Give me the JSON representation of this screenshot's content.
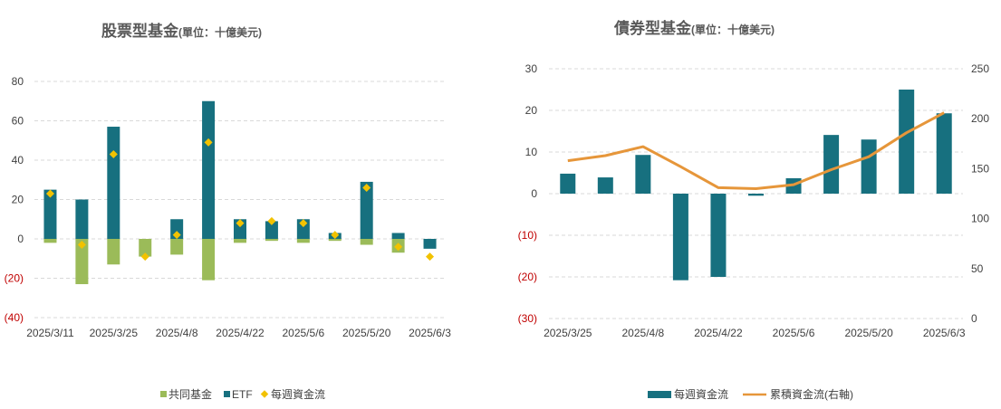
{
  "colors": {
    "mutual": "#9bbb59",
    "etf": "#17707f",
    "net": "#f2c200",
    "weekly": "#17707f",
    "cumulative": "#e6963a",
    "negative_tick": "#c00000",
    "grid": "#d9d9d9"
  },
  "chart_data": [
    {
      "type": "bar",
      "title": "股票型基金",
      "subtitle": "(單位：十億美元)",
      "ylim": [
        -40,
        80
      ],
      "yticks": [
        "80",
        "60",
        "40",
        "20",
        "0",
        "(20)",
        "(40)"
      ],
      "ytick_values": [
        80,
        60,
        40,
        20,
        0,
        -20,
        -40
      ],
      "x": [
        "2025/3/11",
        "2025/3/18",
        "2025/3/25",
        "2025/4/1",
        "2025/4/8",
        "2025/4/15",
        "2025/4/22",
        "2025/4/29",
        "2025/5/6",
        "2025/5/13",
        "2025/5/20",
        "2025/5/27",
        "2025/6/3"
      ],
      "xticks": [
        "2025/3/11",
        "2025/3/25",
        "2025/4/8",
        "2025/4/22",
        "2025/5/6",
        "2025/5/20",
        "2025/6/3"
      ],
      "xtick_index": [
        0,
        2,
        4,
        6,
        8,
        10,
        12
      ],
      "grid": true,
      "legend_position": "bottom",
      "series": [
        {
          "name": "共同基金",
          "kind": "bar",
          "values": [
            -2,
            -23,
            -13,
            -9,
            -8,
            -21,
            -2,
            -1,
            -2,
            -1,
            -3,
            -7,
            -4
          ]
        },
        {
          "name": "ETF",
          "kind": "bar",
          "values": [
            25,
            20,
            57,
            0,
            10,
            70,
            10,
            9,
            10,
            3,
            29,
            3,
            -5
          ]
        },
        {
          "name": "每週資金流",
          "kind": "marker",
          "values": [
            23,
            -3,
            43,
            -9,
            2,
            49,
            8,
            9,
            8,
            2,
            26,
            -4,
            -9
          ]
        }
      ]
    },
    {
      "type": "bar+line",
      "title": "債券型基金",
      "subtitle": "(單位：十億美元)",
      "ylim": [
        -30,
        30
      ],
      "yticks": [
        "30",
        "20",
        "10",
        "0",
        "(10)",
        "(20)",
        "(30)"
      ],
      "ytick_values": [
        30,
        20,
        10,
        0,
        -10,
        -20,
        -30
      ],
      "y2lim": [
        0,
        250
      ],
      "y2ticks": [
        "250",
        "200",
        "150",
        "100",
        "50",
        "0"
      ],
      "y2tick_values": [
        250,
        200,
        150,
        100,
        50,
        0
      ],
      "x": [
        "2025/3/25",
        "2025/4/1",
        "2025/4/8",
        "2025/4/15",
        "2025/4/22",
        "2025/4/29",
        "2025/5/6",
        "2025/5/13",
        "2025/5/20",
        "2025/5/27",
        "2025/6/3"
      ],
      "xticks": [
        "2025/3/25",
        "2025/4/8",
        "2025/4/22",
        "2025/5/6",
        "2025/5/20",
        "2025/6/3"
      ],
      "xtick_index": [
        0,
        2,
        4,
        6,
        8,
        10
      ],
      "grid": true,
      "legend_position": "bottom",
      "series": [
        {
          "name": "每週資金流",
          "kind": "bar",
          "axis": "left",
          "values": [
            4.8,
            3.9,
            9.3,
            -20.8,
            -20,
            -0.5,
            3.7,
            14.1,
            13,
            25,
            19.3
          ]
        },
        {
          "name": "累積資金流(右軸)",
          "kind": "line",
          "axis": "right",
          "values": [
            158,
            163,
            172,
            152,
            131,
            130,
            134,
            149,
            162,
            186,
            206
          ]
        }
      ]
    }
  ]
}
